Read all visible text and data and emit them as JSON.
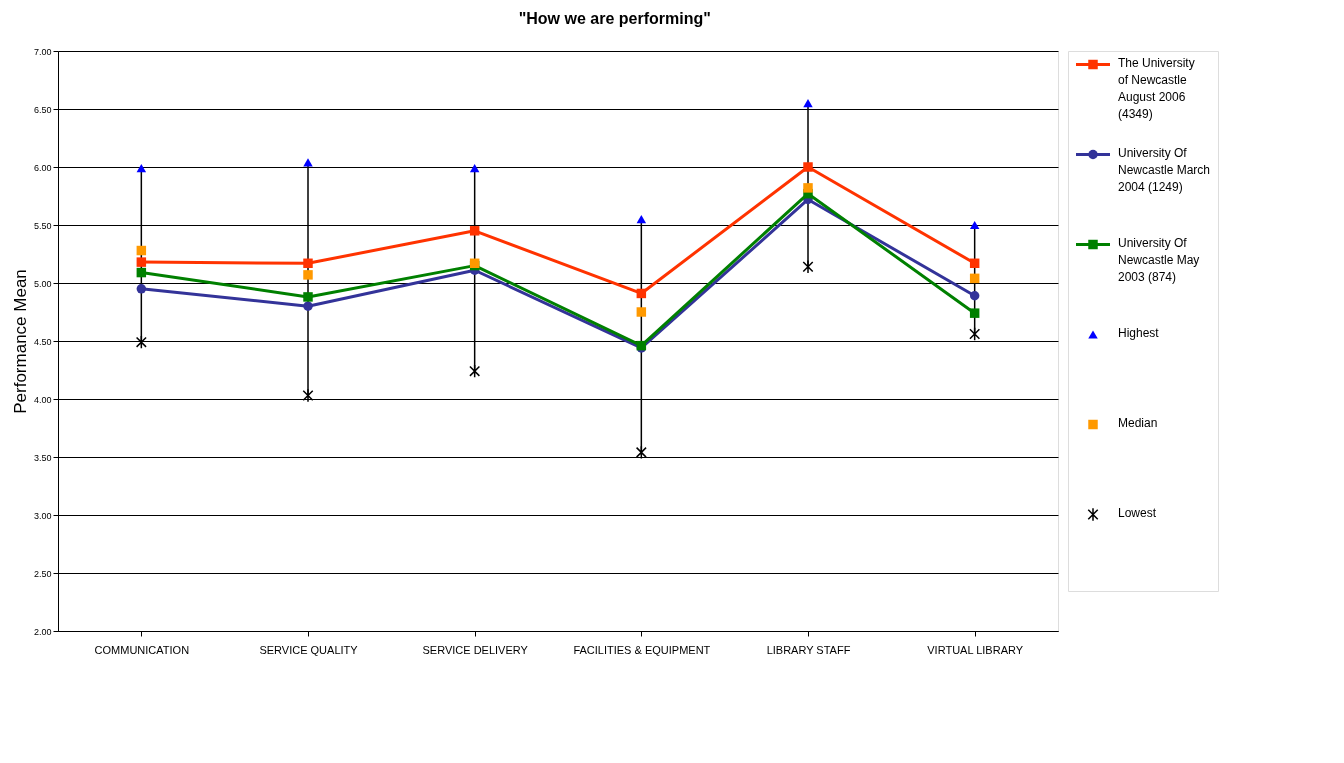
{
  "chart_data": {
    "type": "line",
    "title": "\"How we are performing\"",
    "ylabel": "Performance Mean",
    "categories": [
      "COMMUNICATION",
      "SERVICE QUALITY",
      "SERVICE DELIVERY",
      "FACILITIES & EQUIPMENT",
      "LIBRARY STAFF",
      "VIRTUAL LIBRARY"
    ],
    "series": [
      {
        "name": "The University of Newcastle August 2006 (4349)",
        "color": "#ff3300",
        "marker": "square",
        "values": [
          5.18,
          5.17,
          5.45,
          4.91,
          6.0,
          5.17
        ]
      },
      {
        "name": "University Of Newcastle March 2004 (1249)",
        "color": "#333399",
        "marker": "circle",
        "values": [
          4.95,
          4.8,
          5.11,
          4.44,
          5.72,
          4.89
        ]
      },
      {
        "name": "University Of Newcastle May 2003 (874)",
        "color": "#008000",
        "marker": "square",
        "values": [
          5.09,
          4.88,
          5.15,
          4.46,
          5.77,
          4.74
        ]
      },
      {
        "name": "Highest",
        "type": "scatter",
        "color": "#0000ff",
        "marker": "triangle",
        "values": [
          5.99,
          6.04,
          5.99,
          5.55,
          6.55,
          5.5
        ]
      },
      {
        "name": "Median",
        "type": "scatter",
        "color": "#ff9900",
        "marker": "square",
        "values": [
          5.28,
          5.07,
          5.17,
          4.75,
          5.82,
          5.04
        ]
      },
      {
        "name": "Lowest",
        "type": "scatter",
        "color": "#000000",
        "marker": "cross",
        "values": [
          4.49,
          4.03,
          4.24,
          3.54,
          5.14,
          4.56
        ]
      }
    ],
    "ylim": [
      2,
      7
    ],
    "yticks": [
      {
        "value": 2,
        "label": "2.00"
      },
      {
        "value": 2.5,
        "label": "2.50"
      },
      {
        "value": 3,
        "label": "3.00"
      },
      {
        "value": 3.5,
        "label": "3.50"
      },
      {
        "value": 4,
        "label": "4.00"
      },
      {
        "value": 4.5,
        "label": "4.50"
      },
      {
        "value": 5,
        "label": "5.00"
      },
      {
        "value": 5.5,
        "label": "5.50"
      },
      {
        "value": 6,
        "label": "6.00"
      },
      {
        "value": 6.5,
        "label": "6.50"
      },
      {
        "value": 7,
        "label": "7.00"
      }
    ],
    "grid": "y",
    "legend": "right"
  }
}
